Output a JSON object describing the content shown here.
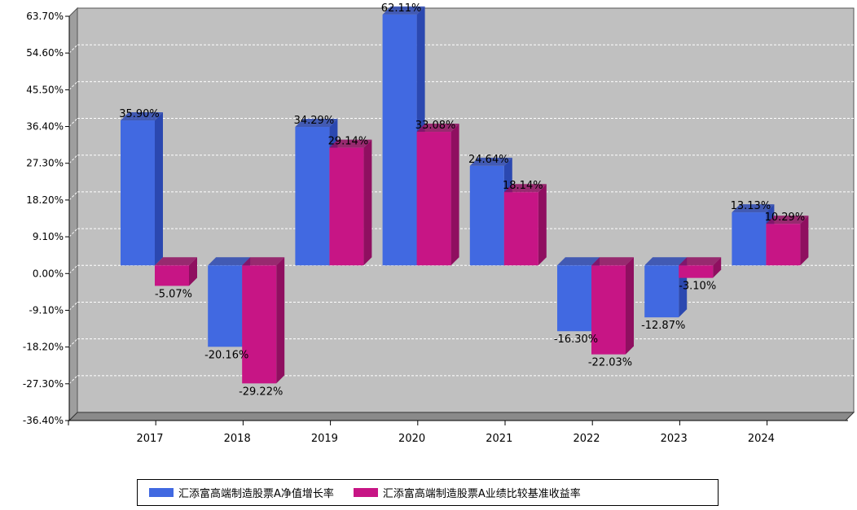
{
  "chart_data": {
    "type": "bar",
    "categories": [
      "2017",
      "2018",
      "2019",
      "2020",
      "2021",
      "2022",
      "2023",
      "2024"
    ],
    "series": [
      {
        "name": "汇添富高端制造股票A净值增长率",
        "color": "#4169e1",
        "side_color": "#2b48b0",
        "values": [
          35.9,
          -20.16,
          34.29,
          62.11,
          24.64,
          -16.3,
          -12.87,
          13.13
        ],
        "labels": [
          "35.90%",
          "-20.16%",
          "34.29%",
          "62.11%",
          "24.64%",
          "-16.30%",
          "-12.87%",
          "13.13%"
        ]
      },
      {
        "name": "汇添富高端制造股票A业绩比较基准收益率",
        "color": "#c71585",
        "side_color": "#8f0f60",
        "values": [
          -5.07,
          -29.22,
          29.14,
          33.08,
          18.14,
          -22.03,
          -3.1,
          10.29
        ],
        "labels": [
          "-5.07%",
          "-29.22%",
          "29.14%",
          "33.08%",
          "18.14%",
          "-22.03%",
          "-3.10%",
          "10.29%"
        ]
      }
    ],
    "yticks": [
      "63.70%",
      "54.60%",
      "45.50%",
      "36.40%",
      "27.30%",
      "18.20%",
      "9.10%",
      "0.00%",
      "-9.10%",
      "-18.20%",
      "-27.30%",
      "-36.40%"
    ],
    "ytick_values": [
      63.7,
      54.6,
      45.5,
      36.4,
      27.3,
      18.2,
      9.1,
      0,
      -9.1,
      -18.2,
      -27.3,
      -36.4
    ],
    "ylim": [
      -36.4,
      63.7
    ],
    "grid": true,
    "legend_position": "bottom-center"
  }
}
